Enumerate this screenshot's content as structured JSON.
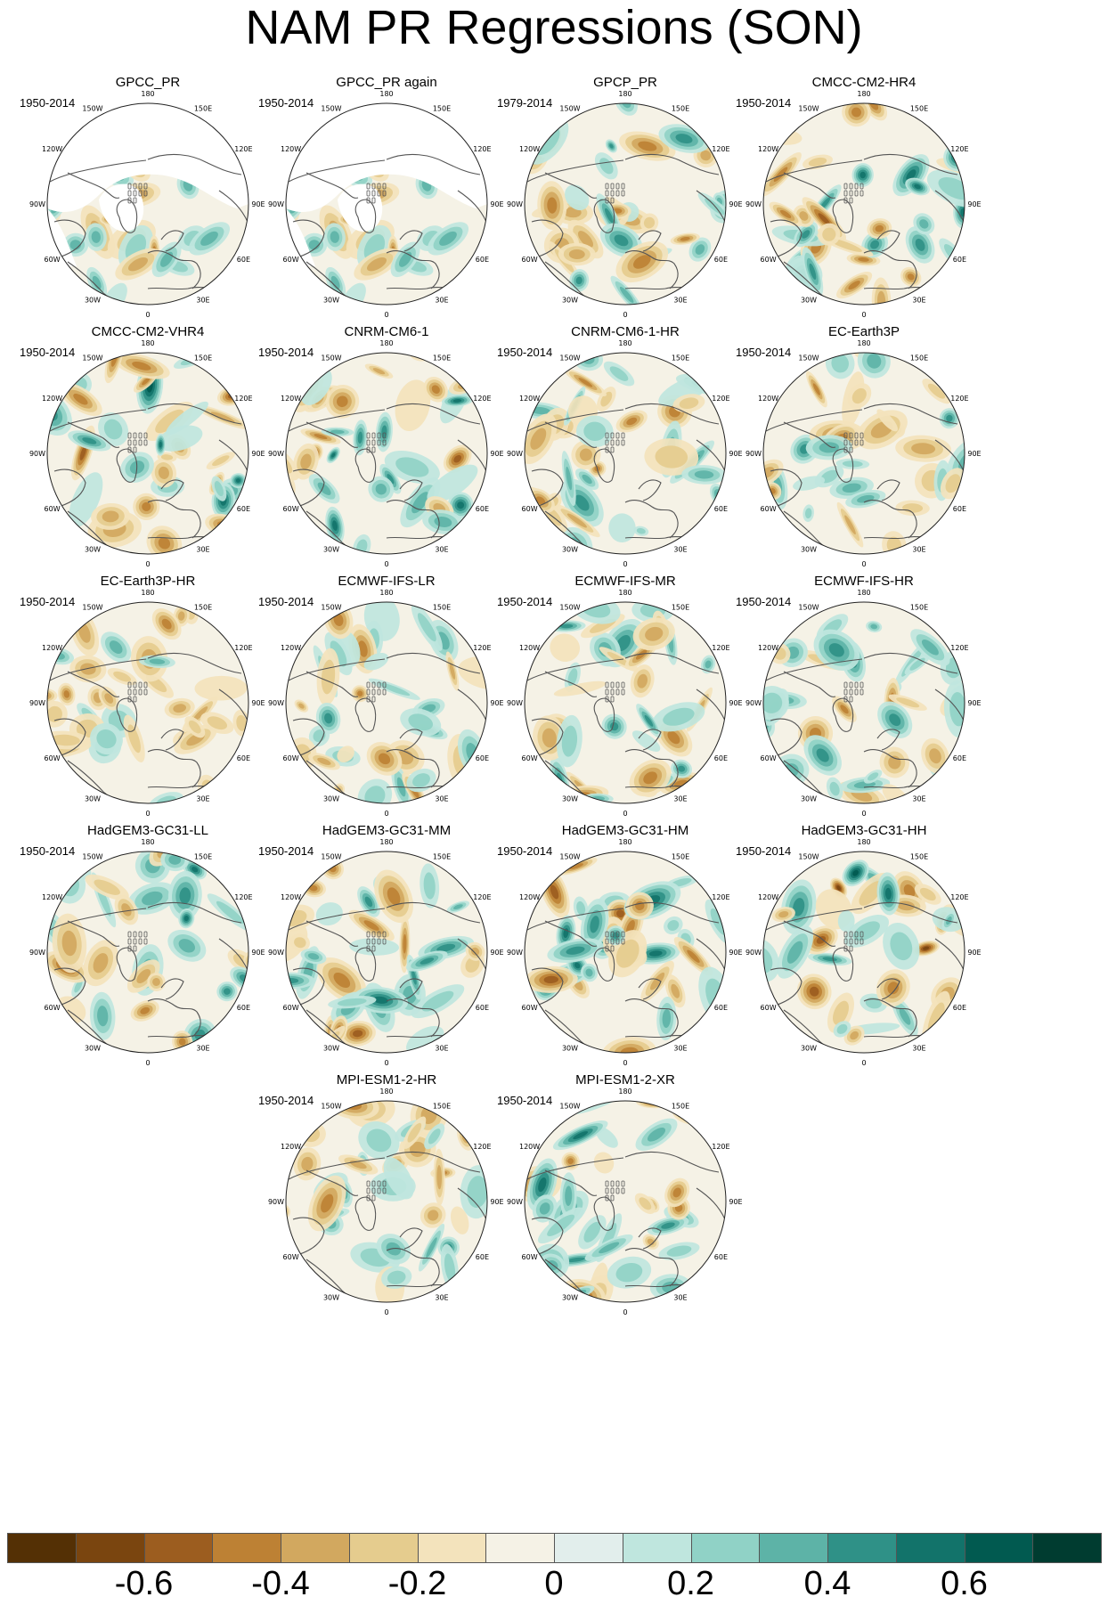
{
  "title": "NAM PR Regressions (SON)",
  "panels": [
    {
      "name": "GPCC_PR",
      "period": "1950-2014",
      "masked": true,
      "seed": 11,
      "stats": "obs",
      "intensity": 0.55
    },
    {
      "name": "GPCC_PR again",
      "period": "1950-2014",
      "masked": true,
      "seed": 11,
      "stats": "obs",
      "intensity": 0.55
    },
    {
      "name": "GPCP_PR",
      "period": "1979-2014",
      "masked": false,
      "seed": 23,
      "stats": "obs",
      "intensity": 0.8
    },
    {
      "name": "CMCC-CM2-HR4",
      "period": "1950-2014",
      "masked": false,
      "seed": 37,
      "stats": "model",
      "intensity": 0.85
    },
    {
      "name": "CMCC-CM2-VHR4",
      "period": "1950-2014",
      "masked": false,
      "seed": 41,
      "stats": "model",
      "intensity": 1.0
    },
    {
      "name": "CNRM-CM6-1",
      "period": "1950-2014",
      "masked": false,
      "seed": 53,
      "stats": "model",
      "intensity": 0.95
    },
    {
      "name": "CNRM-CM6-1-HR",
      "period": "1950-2014",
      "masked": false,
      "seed": 61,
      "stats": "model",
      "intensity": 0.75
    },
    {
      "name": "EC-Earth3P",
      "period": "1950-2014",
      "masked": false,
      "seed": 71,
      "stats": "model",
      "intensity": 0.7
    },
    {
      "name": "EC-Earth3P-HR",
      "period": "1950-2014",
      "masked": false,
      "seed": 83,
      "stats": "model",
      "intensity": 0.6
    },
    {
      "name": "ECMWF-IFS-LR",
      "period": "1950-2014",
      "masked": false,
      "seed": 97,
      "stats": "model",
      "intensity": 0.6
    },
    {
      "name": "ECMWF-IFS-MR",
      "period": "1950-2014",
      "masked": false,
      "seed": 101,
      "stats": "model",
      "intensity": 0.7
    },
    {
      "name": "ECMWF-IFS-HR",
      "period": "1950-2014",
      "masked": false,
      "seed": 113,
      "stats": "model",
      "intensity": 0.65
    },
    {
      "name": "HadGEM3-GC31-LL",
      "period": "1950-2014",
      "masked": false,
      "seed": 127,
      "stats": "model",
      "intensity": 0.8
    },
    {
      "name": "HadGEM3-GC31-MM",
      "period": "1950-2014",
      "masked": false,
      "seed": 131,
      "stats": "model",
      "intensity": 0.85
    },
    {
      "name": "HadGEM3-GC31-HM",
      "period": "1950-2014",
      "masked": false,
      "seed": 139,
      "stats": "model",
      "intensity": 0.95
    },
    {
      "name": "HadGEM3-GC31-HH",
      "period": "1950-2014",
      "masked": false,
      "seed": 149,
      "stats": "model",
      "intensity": 1.0
    },
    {
      "name": "MPI-ESM1-2-HR",
      "period": "1950-2014",
      "masked": false,
      "seed": 157,
      "stats": "model",
      "intensity": 0.7
    },
    {
      "name": "MPI-ESM1-2-XR",
      "period": "1950-2014",
      "masked": false,
      "seed": 163,
      "stats": "model",
      "intensity": 0.8
    }
  ],
  "longitude_labels": [
    "180",
    "150E",
    "120E",
    "90E",
    "60E",
    "30E",
    "0",
    "30W",
    "60W",
    "90W",
    "120W",
    "150W"
  ],
  "colorbar": {
    "colors": [
      "#543005",
      "#7a450f",
      "#9c5d1f",
      "#bd8134",
      "#d2a85f",
      "#e5cc8e",
      "#f3e3bc",
      "#f5f2e6",
      "#e2eeec",
      "#bfe6de",
      "#90d2c6",
      "#5db3a7",
      "#2f9187",
      "#12736a",
      "#015a50",
      "#003c30"
    ],
    "labels": [
      "-0.6",
      "-0.4",
      "-0.2",
      "0",
      "0.2",
      "0.4",
      "0.6"
    ],
    "label_boundaries": [
      2,
      4,
      6,
      8,
      10,
      12,
      14
    ]
  }
}
